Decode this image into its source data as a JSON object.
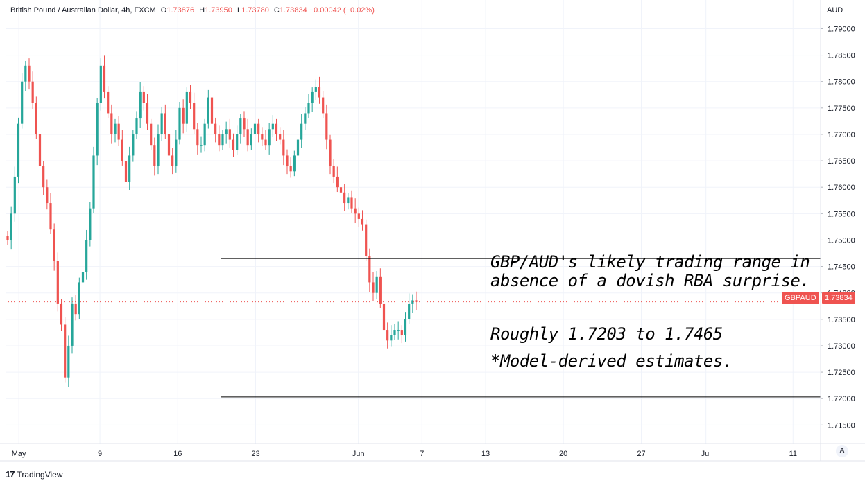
{
  "header": {
    "symbol": "British Pound / Australian Dollar, 4h, FXCM",
    "open_label": "O",
    "open": "1.73876",
    "high_label": "H",
    "high": "1.73950",
    "low_label": "L",
    "low": "1.73780",
    "close_label": "C",
    "close": "1.73834",
    "change": "−0.00042 (−0.02%)"
  },
  "axis": {
    "currency": "AUD",
    "scale_button": "A"
  },
  "price_tag": {
    "symbol": "GBPAUD",
    "value": "1.73834"
  },
  "annotations": {
    "line1": "GBP/AUD's likely trading range in",
    "line2": "absence of a dovish RBA surprise.",
    "line3": "Roughly 1.7203 to 1.7465",
    "line4": "*Model-derived estimates."
  },
  "brand": {
    "name": "TradingView"
  },
  "colors": {
    "up": "#26a69a",
    "down": "#ef5350",
    "grid": "#f0f3fa",
    "range_line": "#000000"
  },
  "chart_data": {
    "type": "candlestick",
    "title": "British Pound / Australian Dollar, 4h, FXCM",
    "ylabel": "AUD",
    "ylim": [
      1.7115,
      1.7915
    ],
    "yticks": [
      "1.79000",
      "1.78500",
      "1.78000",
      "1.77500",
      "1.77000",
      "1.76500",
      "1.76000",
      "1.75500",
      "1.75000",
      "1.74500",
      "1.74000",
      "1.73500",
      "1.73000",
      "1.72500",
      "1.72000",
      "1.71500"
    ],
    "xticks": [
      "May",
      "9",
      "16",
      "23",
      "Jun",
      "7",
      "13",
      "20",
      "27",
      "Jul",
      "11"
    ],
    "range_lines": [
      1.7465,
      1.7203
    ],
    "close_series": [
      1.75,
      1.755,
      1.762,
      1.772,
      1.78,
      1.783,
      1.78,
      1.776,
      1.77,
      1.764,
      1.76,
      1.757,
      1.752,
      1.746,
      1.738,
      1.734,
      1.724,
      1.73,
      1.738,
      1.736,
      1.742,
      1.744,
      1.75,
      1.756,
      1.766,
      1.776,
      1.783,
      1.778,
      1.774,
      1.77,
      1.772,
      1.769,
      1.765,
      1.761,
      1.766,
      1.77,
      1.773,
      1.778,
      1.776,
      1.772,
      1.768,
      1.764,
      1.77,
      1.774,
      1.77,
      1.766,
      1.764,
      1.769,
      1.775,
      1.772,
      1.778,
      1.776,
      1.771,
      1.768,
      1.768,
      1.772,
      1.777,
      1.772,
      1.77,
      1.768,
      1.77,
      1.771,
      1.769,
      1.767,
      1.77,
      1.773,
      1.771,
      1.768,
      1.77,
      1.772,
      1.77,
      1.769,
      1.768,
      1.771,
      1.772,
      1.77,
      1.769,
      1.766,
      1.764,
      1.763,
      1.766,
      1.769,
      1.772,
      1.774,
      1.776,
      1.778,
      1.779,
      1.777,
      1.774,
      1.769,
      1.764,
      1.762,
      1.76,
      1.759,
      1.757,
      1.758,
      1.756,
      1.755,
      1.754,
      1.753,
      1.747,
      1.742,
      1.74,
      1.743,
      1.738,
      1.733,
      1.731,
      1.732,
      1.733,
      1.733,
      1.732,
      1.735,
      1.738,
      1.7386,
      1.7383
    ]
  }
}
